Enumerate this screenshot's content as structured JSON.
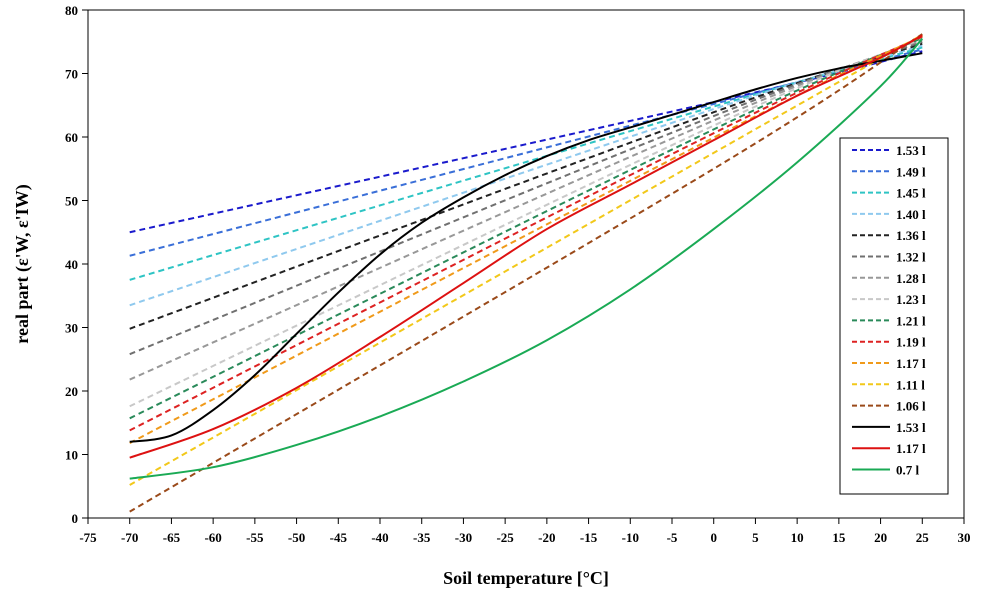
{
  "chart_data": {
    "type": "line",
    "title": "",
    "xlabel": "Soil temperature [°C]",
    "ylabel": "real part (ε'W, ε'IW)",
    "xlim": [
      -75,
      30
    ],
    "ylim": [
      0,
      80
    ],
    "xticks": [
      -75,
      -70,
      -65,
      -60,
      -55,
      -50,
      -45,
      -40,
      -35,
      -30,
      -25,
      -20,
      -15,
      -10,
      -5,
      0,
      5,
      10,
      15,
      20,
      25,
      30
    ],
    "yticks": [
      0,
      10,
      20,
      30,
      40,
      50,
      60,
      70,
      80
    ],
    "grid": false,
    "legend_position": "right",
    "series": [
      {
        "name": "1.53 l",
        "color": "#1a1acc",
        "style": "dashed",
        "x": [
          -70,
          0,
          25
        ],
        "y": [
          45,
          65.5,
          73.5
        ]
      },
      {
        "name": "1.49 l",
        "color": "#3a6fd8",
        "style": "dashed",
        "x": [
          -70,
          0,
          25
        ],
        "y": [
          41.3,
          65.2,
          73.8
        ]
      },
      {
        "name": "1.45 l",
        "color": "#2ec4c4",
        "style": "dashed",
        "x": [
          -70,
          0,
          25
        ],
        "y": [
          37.5,
          64.8,
          74.1
        ]
      },
      {
        "name": "1.40 l",
        "color": "#8fc9ee",
        "style": "dashed",
        "x": [
          -70,
          0,
          25
        ],
        "y": [
          33.5,
          64.4,
          74.4
        ]
      },
      {
        "name": "1.36 l",
        "color": "#222222",
        "style": "dashed",
        "x": [
          -70,
          0,
          25
        ],
        "y": [
          29.8,
          63.9,
          74.7
        ]
      },
      {
        "name": "1.32 l",
        "color": "#707070",
        "style": "dashed",
        "x": [
          -70,
          0,
          25
        ],
        "y": [
          25.8,
          63.3,
          75
        ]
      },
      {
        "name": "1.28 l",
        "color": "#989898",
        "style": "dashed",
        "x": [
          -70,
          0,
          25
        ],
        "y": [
          21.8,
          62.6,
          75.3
        ]
      },
      {
        "name": "1.23 l",
        "color": "#c8c8c8",
        "style": "dashed",
        "x": [
          -70,
          0,
          25
        ],
        "y": [
          17.6,
          61.8,
          75.5
        ]
      },
      {
        "name": "1.21 l",
        "color": "#2a8a5a",
        "style": "dashed",
        "x": [
          -70,
          0,
          25
        ],
        "y": [
          15.7,
          61.2,
          75.6
        ]
      },
      {
        "name": "1.19 l",
        "color": "#dd2222",
        "style": "dashed",
        "x": [
          -70,
          0,
          25
        ],
        "y": [
          13.8,
          60.6,
          75.8
        ]
      },
      {
        "name": "1.17 l",
        "color": "#f09a1a",
        "style": "dashed",
        "x": [
          -70,
          0,
          25
        ],
        "y": [
          11.8,
          59.9,
          75.9
        ]
      },
      {
        "name": "1.11 l",
        "color": "#f2c81a",
        "style": "dashed",
        "x": [
          -70,
          0,
          25
        ],
        "y": [
          5.2,
          57.5,
          76.1
        ]
      },
      {
        "name": "1.06 l",
        "color": "#9a4a1a",
        "style": "dashed",
        "x": [
          -70,
          0,
          25
        ],
        "y": [
          1,
          55,
          76.2
        ]
      },
      {
        "name": "1.53 l",
        "color": "#000000",
        "style": "solid",
        "x": [
          -70,
          -65,
          -60,
          -55,
          -50,
          -45,
          -40,
          -35,
          -30,
          -25,
          -20,
          -15,
          -10,
          -5,
          0,
          5,
          10,
          15,
          20,
          25
        ],
        "y": [
          12,
          13,
          17,
          22.5,
          29,
          35.5,
          41.5,
          46.5,
          50.5,
          54,
          57,
          59.5,
          61.5,
          63.5,
          65.5,
          67.5,
          69.3,
          70.8,
          72,
          73.2
        ]
      },
      {
        "name": "1.17 l",
        "color": "#dd1111",
        "style": "solid",
        "x": [
          -70,
          -60,
          -50,
          -40,
          -30,
          -20,
          -10,
          0,
          10,
          20,
          25
        ],
        "y": [
          9.5,
          14,
          20.5,
          28.5,
          37,
          45.5,
          52.5,
          59.5,
          66.5,
          72.5,
          76
        ]
      },
      {
        "name": "0.7 l",
        "color": "#1aaa55",
        "style": "solid",
        "x": [
          -70,
          -60,
          -50,
          -40,
          -30,
          -20,
          -10,
          0,
          10,
          20,
          25
        ],
        "y": [
          6.2,
          8,
          11.5,
          16,
          21.5,
          28,
          36,
          45.5,
          56,
          68,
          75.5
        ]
      }
    ]
  }
}
